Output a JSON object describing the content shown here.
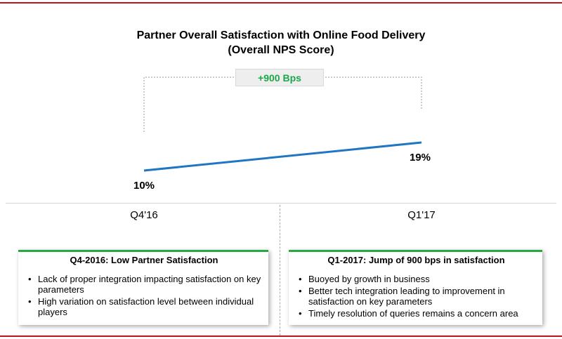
{
  "title_line1": "Partner Overall Satisfaction with Online Food Delivery",
  "title_line2": "(Overall NPS Score)",
  "badge": "+900 Bps",
  "chart_data": {
    "type": "line",
    "title": "Partner Overall Satisfaction with Online Food Delivery (Overall NPS Score)",
    "categories": [
      "Q4'16",
      "Q1'17"
    ],
    "series": [
      {
        "values": [
          10,
          19
        ]
      }
    ],
    "data_labels": [
      "10%",
      "19%"
    ],
    "line_color": "#1f77c4",
    "grid": false
  },
  "cards": [
    {
      "heading": "Q4-2016: Low Partner Satisfaction",
      "bullets": [
        "Lack of proper integration impacting satisfaction on key parameters",
        "High variation on satisfaction level between individual players"
      ]
    },
    {
      "heading": "Q1-2017: Jump of 900 bps in satisfaction",
      "bullets": [
        "Buoyed by growth in business",
        "Better tech integration leading to improvement in satisfaction on key parameters",
        "Timely resolution of queries remains a concern area"
      ]
    }
  ],
  "colors": {
    "accent_red": "#c0141c",
    "card_green": "#28a745",
    "badge_green": "#1aa84a"
  }
}
